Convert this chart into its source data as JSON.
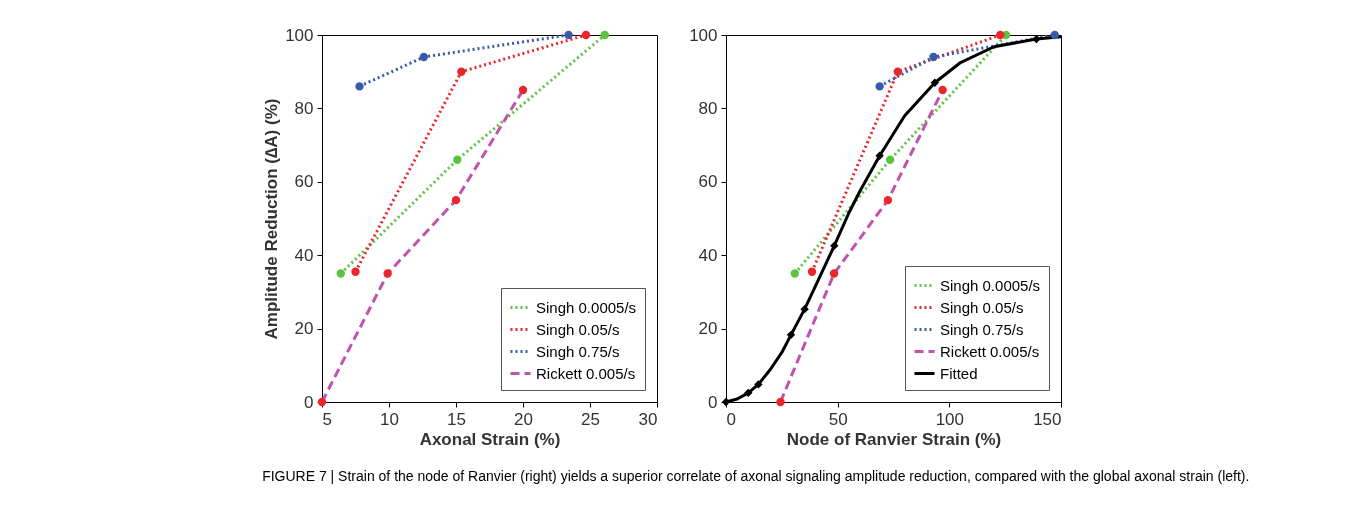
{
  "chart_data": [
    {
      "type": "line",
      "xlabel": "Axonal Strain (%)",
      "ylabel": "Amplitude Reduction (∆A) (%)",
      "xlim": [
        5,
        30
      ],
      "xticks": [
        5,
        10,
        15,
        20,
        25,
        30
      ],
      "ylim": [
        0,
        100
      ],
      "yticks": [
        0,
        20,
        40,
        60,
        80,
        100
      ],
      "grid": false,
      "legend": "bottom right",
      "annotations": [
        "FIGURE 7 | Strain of the node of Ranvier (right) yields a superior correlate of axonal signaling amplitude reduction, compared with the global axonal strain (left)."
      ],
      "series": [
        {
          "name": "Singh 0.0005/s",
          "color": "#5cc33f",
          "line_style": "dotted",
          "marker": "circle",
          "x": [
            6.4,
            15.1,
            26.1
          ],
          "values": [
            35,
            66,
            100
          ]
        },
        {
          "name": "Singh 0.05/s",
          "color": "#e8262b",
          "line_style": "dotted",
          "marker": "circle",
          "x": [
            7.5,
            15.4,
            24.7
          ],
          "values": [
            35.5,
            90,
            100
          ]
        },
        {
          "name": "Singh 0.75/s",
          "color": "#3a5aa8",
          "line_style": "dotted",
          "marker": "circle",
          "x": [
            7.8,
            12.6,
            23.4
          ],
          "values": [
            86,
            94,
            100
          ]
        },
        {
          "name": "Rickett 0.005/s",
          "color": "#c052b0",
          "line_style": "dashed",
          "marker": "none",
          "x": [
            5,
            9.9,
            15,
            20
          ],
          "values": [
            0,
            35,
            55,
            85
          ]
        },
        {
          "type": "scatter",
          "color": "#e8262b",
          "marker": "circle",
          "x": [
            5,
            9.9,
            15,
            20
          ],
          "values": [
            0,
            35,
            55,
            85
          ]
        }
      ]
    },
    {
      "type": "line",
      "xlabel": "Node of Ranvier Strain (%)",
      "xlim": [
        0,
        150
      ],
      "xticks": [
        0,
        50,
        100,
        150
      ],
      "ylim": [
        0,
        100
      ],
      "yticks": [
        0,
        20,
        40,
        60,
        80,
        100
      ],
      "grid": false,
      "legend": "bottom right",
      "series": [
        {
          "name": "Singh 0.0005/s",
          "color": "#5cc33f",
          "line_style": "dotted",
          "marker": "circle",
          "x": [
            30.8,
            73.5,
            125.4
          ],
          "values": [
            35,
            66,
            100
          ]
        },
        {
          "name": "Singh 0.05/s",
          "color": "#e8262b",
          "line_style": "dotted",
          "marker": "circle",
          "x": [
            38.5,
            76.9,
            122.8
          ],
          "values": [
            35.5,
            90,
            100
          ]
        },
        {
          "name": "Singh 0.75/s",
          "color": "#3a5aa8",
          "line_style": "dotted",
          "marker": "circle",
          "x": [
            68.8,
            92.9,
            147.2
          ],
          "values": [
            86,
            94,
            100
          ]
        },
        {
          "name": "Rickett 0.005/s",
          "color": "#c052b0",
          "line_style": "dashed",
          "marker": "none",
          "x": [
            24.4,
            48.4,
            72.5,
            97
          ],
          "values": [
            0,
            35,
            55,
            85
          ]
        },
        {
          "name": "Fitted",
          "color": "#000000",
          "line_style": "solid",
          "marker": "none",
          "x": [
            0,
            5,
            10,
            14.5,
            20,
            25,
            29.1,
            35.2,
            40,
            48.5,
            55,
            60,
            68.8,
            80,
            93.5,
            105,
            120,
            139,
            150
          ],
          "values": [
            0,
            0.8,
            2.5,
            4.8,
            9,
            13.5,
            18.3,
            25.3,
            31.5,
            42.6,
            51.5,
            57.5,
            67.1,
            78,
            87,
            92.5,
            96.8,
            98.9,
            99.5
          ]
        },
        {
          "type": "scatter",
          "color": "#e8262b",
          "marker": "circle",
          "x": [
            24.4,
            48.4,
            72.5,
            97
          ],
          "values": [
            0,
            35,
            55,
            85
          ]
        },
        {
          "type": "scatter",
          "color": "#000000",
          "marker": "diamond",
          "x": [
            0,
            10,
            14.5,
            29.1,
            35.2,
            48.5,
            68.8,
            93.5,
            139
          ],
          "values": [
            0,
            2.5,
            4.8,
            18.3,
            25.3,
            42.6,
            67.1,
            87,
            98.9
          ]
        }
      ]
    }
  ]
}
